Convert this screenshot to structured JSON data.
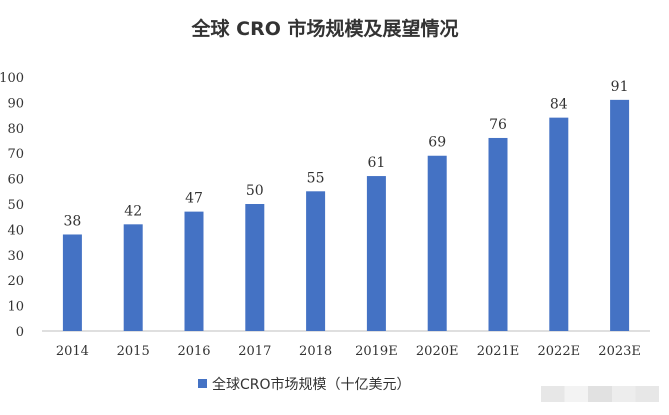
{
  "chart_data": {
    "type": "bar",
    "title": "全球 CRO 市场规模及展望情况",
    "categories": [
      "2014",
      "2015",
      "2016",
      "2017",
      "2018",
      "2019E",
      "2020E",
      "2021E",
      "2022E",
      "2023E"
    ],
    "series": [
      {
        "name": "全球CRO市场规模（十亿美元）",
        "values": [
          38,
          42,
          47,
          50,
          55,
          61,
          69,
          76,
          84,
          91
        ]
      }
    ],
    "ylim": [
      0,
      100
    ],
    "yticks": [
      0,
      10,
      20,
      30,
      40,
      50,
      60,
      70,
      80,
      90,
      100
    ],
    "data_labels": true,
    "legend_position": "bottom-center",
    "grid": false,
    "colors": {
      "bar": "#4472C4",
      "axis": "#BFBFBF"
    }
  }
}
